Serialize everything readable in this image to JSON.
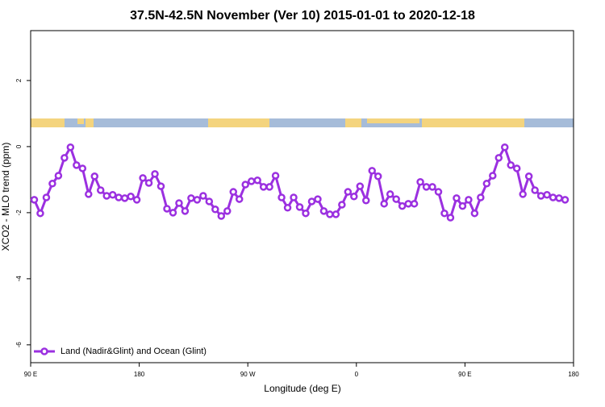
{
  "chart_data": {
    "type": "line",
    "title": "37.5N-42.5N November (Ver 10)   2015-01-01 to 2020-12-18",
    "x_label": "Longitude (deg E)",
    "y_label": "XCO2 - MLO trend (ppm)",
    "xlim": [
      90,
      540
    ],
    "xticks": [
      {
        "value": 90,
        "label": "90 E"
      },
      180,
      {
        "value": 270,
        "label": "90 W"
      },
      {
        "value": 360,
        "label": "0"
      },
      {
        "value": 450,
        "label": "90 E"
      },
      {
        "value": 540,
        "label": "180"
      }
    ],
    "ylim": [
      -6.54,
      3.51
    ],
    "yticks": [
      -6,
      -4,
      -2,
      0,
      2
    ],
    "legend": "bottom-left",
    "x": [
      93,
      98,
      103,
      108,
      113,
      118,
      123,
      128,
      133,
      138,
      143,
      148,
      153,
      158,
      163,
      168,
      173,
      178,
      183,
      188,
      193,
      198,
      203,
      208,
      213,
      218,
      223,
      228,
      233,
      238,
      243,
      248,
      253,
      258,
      263,
      268,
      273,
      278,
      283,
      288,
      293,
      298,
      303,
      308,
      313,
      318,
      323,
      328,
      333,
      338,
      343,
      348,
      353,
      358,
      363,
      368,
      373,
      378,
      383,
      388,
      393,
      398,
      403,
      408,
      413,
      418,
      423,
      428,
      433,
      438,
      443,
      448,
      453,
      458,
      463,
      468,
      473,
      478,
      483,
      488,
      493,
      498,
      503,
      508,
      513,
      518,
      523,
      528,
      533
    ],
    "series": [
      {
        "name": "Land (Nadir&Glint) and Ocean (Glint)",
        "color": "#9b30e0",
        "values": [
          -1.61,
          -2.02,
          -1.54,
          -1.12,
          -0.88,
          -0.34,
          -0.02,
          -0.56,
          -0.66,
          -1.44,
          -0.9,
          -1.32,
          -1.49,
          -1.46,
          -1.54,
          -1.56,
          -1.51,
          -1.61,
          -0.95,
          -1.1,
          -0.83,
          -1.2,
          -1.88,
          -2.0,
          -1.71,
          -1.95,
          -1.56,
          -1.61,
          -1.49,
          -1.66,
          -1.9,
          -2.1,
          -1.95,
          -1.37,
          -1.59,
          -1.15,
          -1.05,
          -1.02,
          -1.22,
          -1.22,
          -0.88,
          -1.54,
          -1.85,
          -1.54,
          -1.83,
          -2.02,
          -1.66,
          -1.59,
          -1.95,
          -2.05,
          -2.05,
          -1.76,
          -1.37,
          -1.51,
          -1.2,
          -1.63,
          -0.73,
          -0.9,
          -1.73,
          -1.44,
          -1.59,
          -1.8,
          -1.73,
          -1.73,
          -1.07,
          -1.22,
          -1.22,
          -1.37,
          -2.02,
          -2.15,
          -1.56,
          -1.8,
          -1.61,
          -2.02,
          -1.54,
          -1.12,
          -0.88,
          -0.34,
          -0.02,
          -0.56,
          -0.66,
          -1.44,
          -0.9,
          -1.32,
          -1.49,
          -1.46,
          -1.54,
          -1.56,
          -1.61
        ]
      }
    ]
  }
}
